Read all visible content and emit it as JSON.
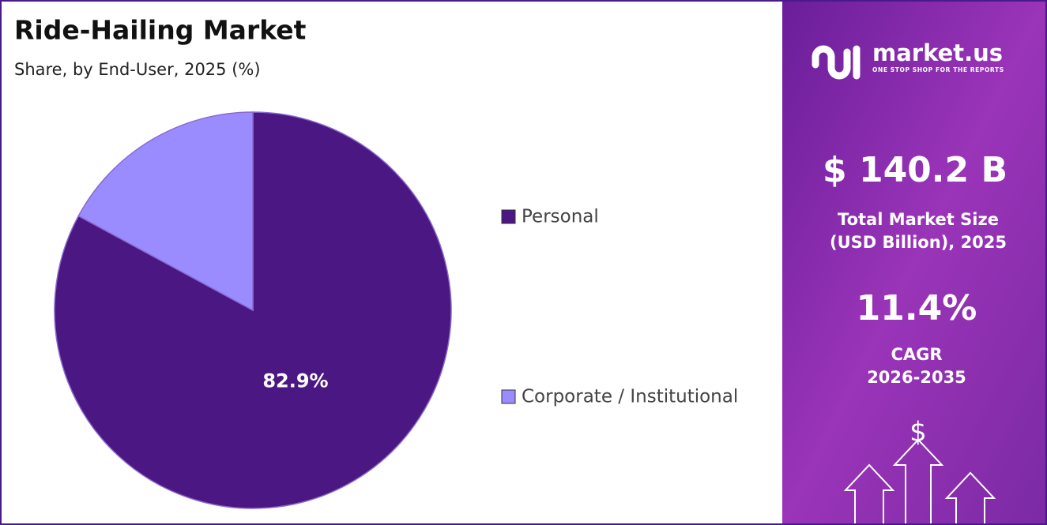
{
  "chart_data": {
    "type": "pie",
    "title": "Ride-Hailing Market",
    "subtitle": "Share, by End-User, 2025 (%)",
    "categories": [
      "Personal",
      "Corporate / Institutional"
    ],
    "values": [
      82.9,
      17.1
    ],
    "value_labels": [
      "82.9%",
      null
    ],
    "colors": [
      "#4b1782",
      "#9a8cff"
    ],
    "legend_position": "right"
  },
  "panel": {
    "logo": "market.us",
    "tagline": "ONE STOP SHOP FOR THE REPORTS",
    "market_size": "$ 140.2 B",
    "market_size_caption": [
      "Total Market Size",
      "(USD Billion), 2025"
    ],
    "cagr": "11.4%",
    "cagr_caption": [
      "CAGR",
      "2026-2035"
    ],
    "icon": "$"
  }
}
